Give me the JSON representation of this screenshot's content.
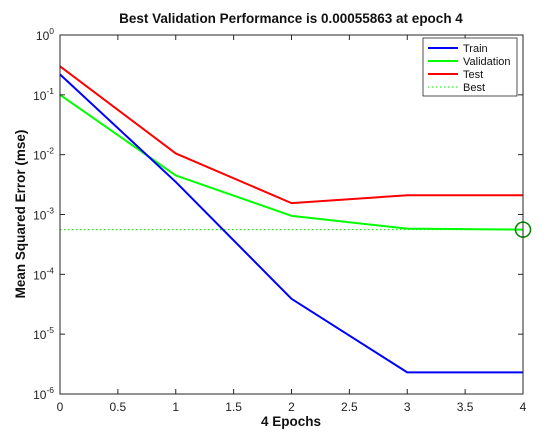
{
  "chart_data": {
    "type": "line",
    "title": "Best Validation Performance is 0.00055863 at epoch 4",
    "xlabel": "4 Epochs",
    "ylabel": "Mean Squared Error  (mse)",
    "x": [
      0,
      1,
      2,
      3,
      4
    ],
    "xlim": [
      0,
      4
    ],
    "ylim": [
      1e-06,
      1
    ],
    "yscale": "log",
    "grid": false,
    "legend_position": "top-right",
    "x_ticks": [
      "0",
      "0.5",
      "1",
      "1.5",
      "2",
      "2.5",
      "3",
      "3.5",
      "4"
    ],
    "y_ticks": [
      {
        "base": "10",
        "exp": "0"
      },
      {
        "base": "10",
        "exp": "-1"
      },
      {
        "base": "10",
        "exp": "-2"
      },
      {
        "base": "10",
        "exp": "-3"
      },
      {
        "base": "10",
        "exp": "-4"
      },
      {
        "base": "10",
        "exp": "-5"
      },
      {
        "base": "10",
        "exp": "-6"
      }
    ],
    "series": [
      {
        "name": "Train",
        "color": "#0000ff",
        "values": [
          0.22,
          0.0035,
          3.9e-05,
          2.3e-06,
          2.3e-06
        ]
      },
      {
        "name": "Validation",
        "color": "#00ff00",
        "values": [
          0.1,
          0.0045,
          0.00095,
          0.00058,
          0.00055863
        ]
      },
      {
        "name": "Test",
        "color": "#ff0000",
        "values": [
          0.3,
          0.0105,
          0.00155,
          0.0021,
          0.0021
        ]
      }
    ],
    "best": {
      "name": "Best",
      "color": "#00e000",
      "epoch": 4,
      "value": 0.00055863
    }
  }
}
